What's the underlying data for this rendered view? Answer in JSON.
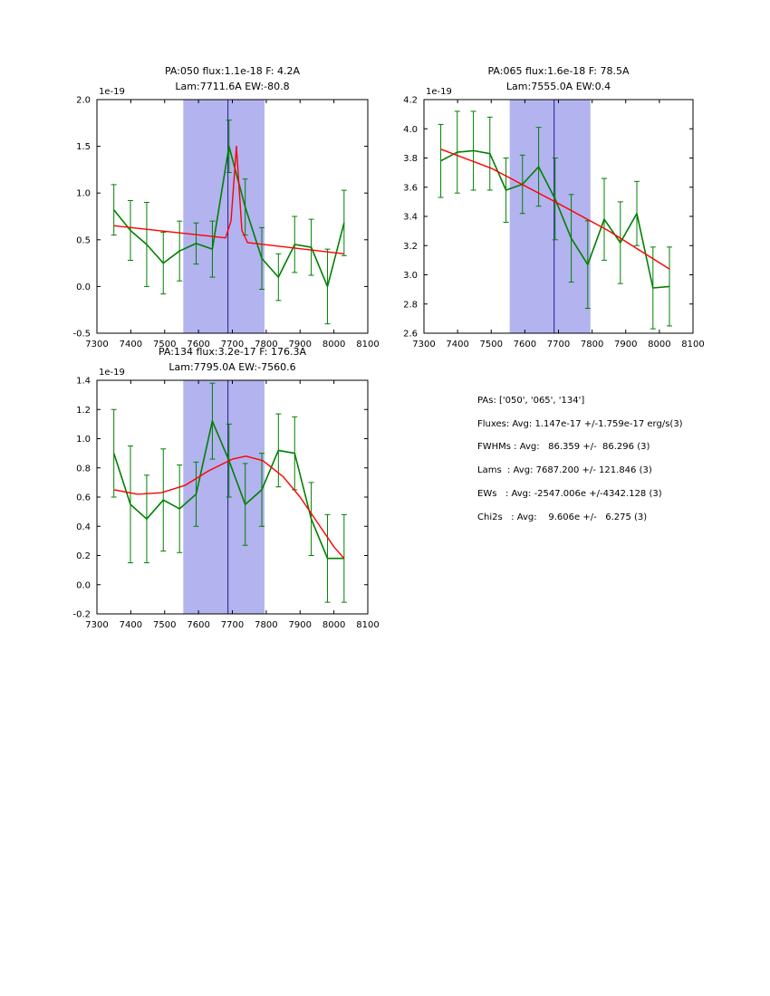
{
  "window": {
    "background": "#ffffff"
  },
  "stats_panel": {
    "lines": [
      "PAs: ['050', '065', '134']",
      "Fluxes: Avg: 1.147e-17 +/-1.759e-17 erg/s(3)",
      "FWHMs : Avg:   86.359 +/-  86.296 (3)",
      "Lams  : Avg: 7687.200 +/- 121.846 (3)",
      "EWs   : Avg: -2547.006e +/-4342.128 (3)",
      "Chi2s   : Avg:    9.606e +/-   6.275 (3)"
    ]
  },
  "chart_data": [
    {
      "type": "line",
      "title": "PA:050 flux:1.1e-18 F: 4.2A",
      "subtitle": "Lam:7711.6A EW:-80.8",
      "y_offset_label": "1e-19",
      "xlim": [
        7300,
        8100
      ],
      "ylim": [
        -0.5,
        2.0
      ],
      "xticks": [
        7300,
        7400,
        7500,
        7600,
        7700,
        7800,
        7900,
        8000,
        8100
      ],
      "yticks": [
        -0.5,
        0.0,
        0.5,
        1.0,
        1.5,
        2.0
      ],
      "band": {
        "x0": 7555,
        "x1": 7795,
        "color": "#b3b3f0"
      },
      "vline": {
        "x": 7687,
        "color": "#1c1c8f"
      },
      "grid": false,
      "legend": "none",
      "series": [
        {
          "name": "spectrum",
          "kind": "errorbar",
          "color": "#008000",
          "x": [
            7350,
            7399,
            7447,
            7496,
            7544,
            7593,
            7641,
            7690,
            7738,
            7787,
            7836,
            7884,
            7933,
            7981,
            8030
          ],
          "y": [
            0.82,
            0.6,
            0.45,
            0.25,
            0.38,
            0.46,
            0.4,
            1.5,
            0.85,
            0.3,
            0.1,
            0.45,
            0.42,
            0.0,
            0.68
          ],
          "yerr": [
            0.27,
            0.32,
            0.45,
            0.33,
            0.32,
            0.22,
            0.3,
            0.28,
            0.3,
            0.33,
            0.25,
            0.3,
            0.3,
            0.4,
            0.35
          ]
        },
        {
          "name": "fit",
          "kind": "line",
          "color": "#ff0000",
          "x": [
            7350,
            7680,
            7696,
            7712,
            7728,
            7745,
            8030
          ],
          "y": [
            0.65,
            0.52,
            0.7,
            1.5,
            0.6,
            0.47,
            0.35
          ]
        }
      ]
    },
    {
      "type": "line",
      "title": "PA:065 flux:1.6e-18 F: 78.5A",
      "subtitle": "Lam:7555.0A EW:0.4",
      "y_offset_label": "1e-19",
      "xlim": [
        7300,
        8100
      ],
      "ylim": [
        2.6,
        4.2
      ],
      "xticks": [
        7300,
        7400,
        7500,
        7600,
        7700,
        7800,
        7900,
        8000,
        8100
      ],
      "yticks": [
        2.6,
        2.8,
        3.0,
        3.2,
        3.4,
        3.6,
        3.8,
        4.0,
        4.2
      ],
      "band": {
        "x0": 7555,
        "x1": 7795,
        "color": "#b3b3f0"
      },
      "vline": {
        "x": 7687,
        "color": "#1c1c8f"
      },
      "grid": false,
      "legend": "none",
      "series": [
        {
          "name": "spectrum",
          "kind": "errorbar",
          "color": "#008000",
          "x": [
            7350,
            7399,
            7447,
            7496,
            7544,
            7593,
            7641,
            7690,
            7738,
            7787,
            7836,
            7884,
            7933,
            7981,
            8030
          ],
          "y": [
            3.78,
            3.84,
            3.85,
            3.83,
            3.58,
            3.62,
            3.74,
            3.52,
            3.25,
            3.07,
            3.38,
            3.22,
            3.42,
            2.91,
            2.92
          ],
          "yerr": [
            0.25,
            0.28,
            0.27,
            0.25,
            0.22,
            0.2,
            0.27,
            0.28,
            0.3,
            0.3,
            0.28,
            0.28,
            0.22,
            0.28,
            0.27
          ]
        },
        {
          "name": "fit",
          "kind": "line",
          "color": "#ff0000",
          "x": [
            7350,
            7500,
            7690,
            7850,
            8030
          ],
          "y": [
            3.86,
            3.73,
            3.5,
            3.3,
            3.04
          ]
        }
      ]
    },
    {
      "type": "line",
      "title": "PA:134 flux:3.2e-17 F: 176.3A",
      "subtitle": "Lam:7795.0A EW:-7560.6",
      "y_offset_label": "1e-19",
      "xlim": [
        7300,
        8100
      ],
      "ylim": [
        -0.2,
        1.4
      ],
      "xticks": [
        7300,
        7400,
        7500,
        7600,
        7700,
        7800,
        7900,
        8000,
        8100
      ],
      "yticks": [
        -0.2,
        0.0,
        0.2,
        0.4,
        0.6,
        0.8,
        1.0,
        1.2,
        1.4
      ],
      "band": {
        "x0": 7555,
        "x1": 7795,
        "color": "#b3b3f0"
      },
      "vline": {
        "x": 7687,
        "color": "#1c1c8f"
      },
      "grid": false,
      "legend": "none",
      "series": [
        {
          "name": "spectrum",
          "kind": "errorbar",
          "color": "#008000",
          "x": [
            7350,
            7399,
            7447,
            7496,
            7544,
            7593,
            7641,
            7690,
            7738,
            7787,
            7836,
            7884,
            7933,
            7981,
            8030
          ],
          "y": [
            0.9,
            0.55,
            0.45,
            0.58,
            0.52,
            0.62,
            1.12,
            0.85,
            0.55,
            0.65,
            0.92,
            0.9,
            0.45,
            0.18,
            0.18
          ],
          "yerr": [
            0.3,
            0.4,
            0.3,
            0.35,
            0.3,
            0.22,
            0.26,
            0.25,
            0.28,
            0.25,
            0.25,
            0.25,
            0.25,
            0.3,
            0.3
          ]
        },
        {
          "name": "fit",
          "kind": "line",
          "color": "#ff0000",
          "x": [
            7350,
            7420,
            7490,
            7560,
            7630,
            7700,
            7740,
            7790,
            7850,
            7900,
            7950,
            8000,
            8030
          ],
          "y": [
            0.65,
            0.62,
            0.63,
            0.68,
            0.78,
            0.86,
            0.88,
            0.85,
            0.74,
            0.6,
            0.43,
            0.26,
            0.18
          ]
        }
      ]
    }
  ]
}
